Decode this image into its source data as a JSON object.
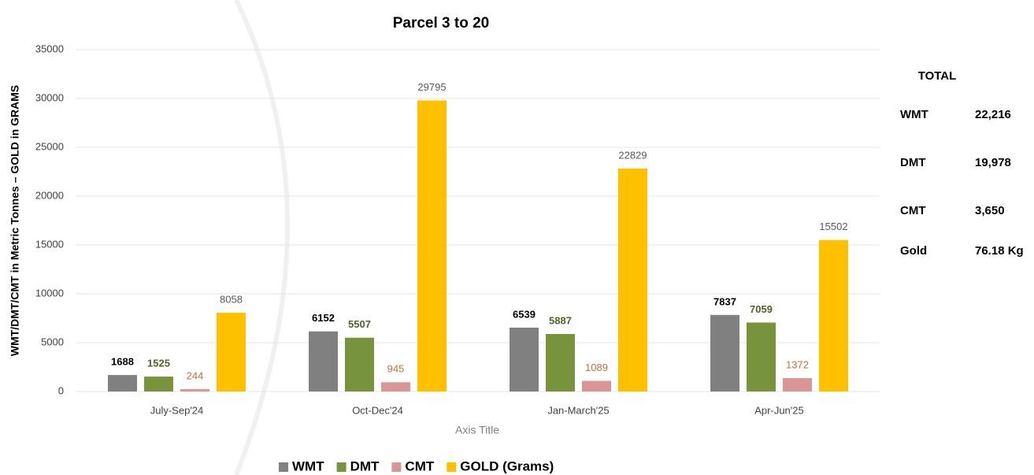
{
  "chart_data": {
    "type": "bar",
    "title": "Parcel 3 to 20",
    "y_label": "WMT/DMT/CMT in Metric Tonnes – GOLD in GRAMS",
    "x_label": "Axis Title",
    "categories": [
      "July-Sep'24",
      "Oct-Dec'24",
      "Jan-March'25",
      "Apr-Jun'25"
    ],
    "series": [
      {
        "name": "WMT",
        "color": "#808080",
        "label_color": "#000000",
        "label_bold": true,
        "values": [
          1688,
          6152,
          6539,
          7837
        ]
      },
      {
        "name": "DMT",
        "color": "#77933c",
        "label_color": "#4f6228",
        "label_bold": true,
        "values": [
          1525,
          5507,
          5887,
          7059
        ]
      },
      {
        "name": "CMT",
        "color": "#d99694",
        "label_color": "#c0703a",
        "label_bold": false,
        "values": [
          244,
          945,
          1089,
          1372
        ]
      },
      {
        "name": "GOLD (Grams)",
        "color": "#ffc000",
        "label_color": "#595959",
        "label_bold": false,
        "values": [
          8058,
          29795,
          22829,
          15502
        ]
      }
    ],
    "ylim": [
      0,
      35000
    ],
    "yticks": [
      0,
      5000,
      10000,
      15000,
      20000,
      25000,
      30000,
      35000
    ],
    "grid": true,
    "legend": "bottom"
  },
  "totals": {
    "title": "TOTAL",
    "rows": [
      [
        "WMT",
        "22,216"
      ],
      [
        "DMT",
        "19,978"
      ],
      [
        "CMT",
        "3,650"
      ],
      [
        "Gold",
        "76.18 Kg"
      ]
    ]
  }
}
